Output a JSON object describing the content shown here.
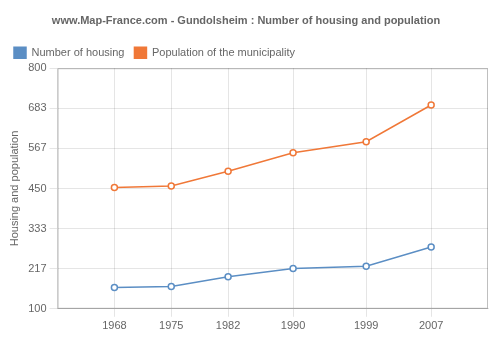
{
  "chart_data": {
    "type": "line",
    "title": "www.Map-France.com - Gundolsheim : Number of housing and population",
    "ylabel": "Housing and population",
    "x": [
      1968,
      1975,
      1982,
      1990,
      1999,
      2007
    ],
    "series": [
      {
        "name": "Number of housing",
        "color": "#5b8ec4",
        "marker": "circle",
        "values": [
          162,
          165,
          193,
          217,
          224,
          280
        ]
      },
      {
        "name": "Population of the municipality",
        "color": "#f07838",
        "marker": "circle",
        "values": [
          453,
          457,
          500,
          554,
          586,
          693
        ]
      }
    ],
    "xlim": [
      1961,
      2014
    ],
    "xticks": [
      1968,
      1975,
      1982,
      1990,
      1999,
      2007
    ],
    "ylim": [
      100,
      800
    ],
    "yticks": [
      100,
      217,
      333,
      450,
      567,
      683,
      800
    ],
    "grid": true,
    "legend": "upper left"
  }
}
